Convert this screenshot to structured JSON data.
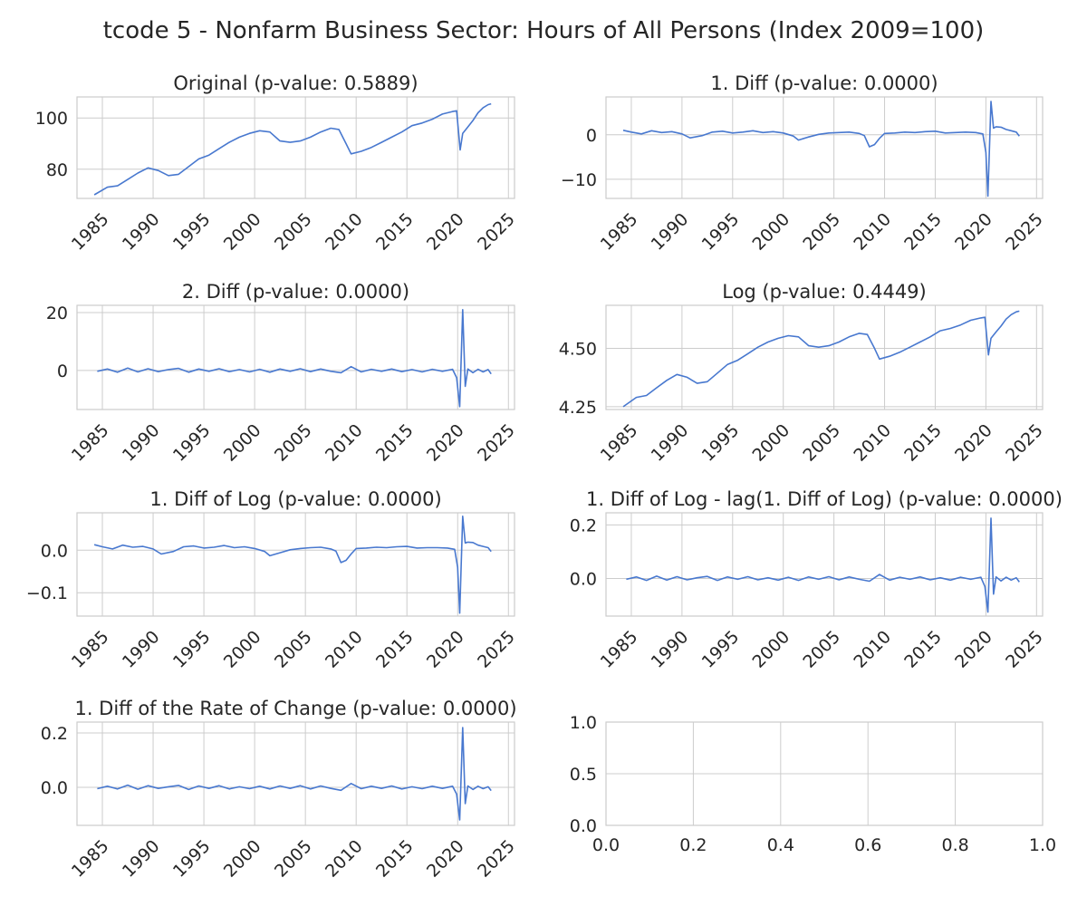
{
  "figure_title": "tcode 5 - Nonfarm Business Sector: Hours of All Persons (Index 2009=100)",
  "colors": {
    "line": "#4878cf",
    "grid": "#cccccc",
    "spine": "#cccccc",
    "text": "#262626",
    "background": "#ffffff"
  },
  "chart_data": [
    {
      "type": "line",
      "title": "Original (p-value: 0.5889)",
      "xlabel": "",
      "ylabel": "",
      "xlim": [
        1982.5,
        2025.6
      ],
      "ylim": [
        68.6,
        108.2
      ],
      "xticks": [
        1985,
        1990,
        1995,
        2000,
        2005,
        2010,
        2015,
        2020,
        2025
      ],
      "yticks": [
        80,
        100
      ],
      "ytick_labels": [
        "80",
        "100"
      ],
      "grid": true,
      "x": [
        1984.2,
        1985.5,
        1986.5,
        1987.5,
        1988.5,
        1989.5,
        1990.5,
        1991.5,
        1992.5,
        1993.5,
        1994.5,
        1995.5,
        1996.5,
        1997.5,
        1998.5,
        1999.5,
        2000.5,
        2001.5,
        2002.5,
        2003.5,
        2004.5,
        2005.5,
        2006.5,
        2007.5,
        2008.3,
        2009.0,
        2009.5,
        2010.5,
        2011.5,
        2012.5,
        2013.5,
        2014.5,
        2015.5,
        2016.5,
        2017.5,
        2018.5,
        2019.5,
        2019.9,
        2020.25,
        2020.5,
        2021.0,
        2021.5,
        2022.0,
        2022.5,
        2023.0,
        2023.3
      ],
      "y": [
        70,
        73,
        73.5,
        76,
        78.5,
        80.5,
        79.5,
        77.5,
        78,
        81,
        84,
        85.5,
        88,
        90.5,
        92.5,
        94,
        95,
        94.5,
        91,
        90.5,
        91,
        92.5,
        94.5,
        96,
        95.5,
        90,
        86,
        87,
        88.5,
        90.5,
        92.5,
        94.5,
        97,
        98,
        99.5,
        101.5,
        102.5,
        102.8,
        87.5,
        94,
        96.5,
        99,
        102,
        104,
        105.2,
        105.5
      ]
    },
    {
      "type": "line",
      "title": "1. Diff (p-value: 0.0000)",
      "xlabel": "",
      "ylabel": "",
      "xlim": [
        1982.5,
        2025.6
      ],
      "ylim": [
        -14.3,
        8.5
      ],
      "xticks": [
        1985,
        1990,
        1995,
        2000,
        2005,
        2010,
        2015,
        2020,
        2025
      ],
      "yticks": [
        -10,
        0
      ],
      "ytick_labels": [
        "−10",
        "0"
      ],
      "grid": true,
      "x": [
        1984.2,
        1985.0,
        1986.0,
        1987.0,
        1988.0,
        1989.0,
        1990.0,
        1990.8,
        1992.0,
        1993.0,
        1994.0,
        1995.0,
        1996.0,
        1997.0,
        1998.0,
        1999.0,
        2000.0,
        2001.0,
        2001.5,
        2002.5,
        2003.5,
        2004.5,
        2005.5,
        2006.5,
        2007.5,
        2008.0,
        2008.5,
        2009.0,
        2009.5,
        2010.0,
        2011.0,
        2012.0,
        2013.0,
        2014.0,
        2015.0,
        2016.0,
        2017.0,
        2018.0,
        2019.0,
        2019.7,
        2020.0,
        2020.2,
        2020.5,
        2020.75,
        2021.0,
        2021.5,
        2022.0,
        2022.5,
        2023.0,
        2023.3
      ],
      "y": [
        1,
        0.6,
        0.2,
        0.9,
        0.5,
        0.7,
        0.2,
        -0.7,
        -0.2,
        0.6,
        0.8,
        0.4,
        0.6,
        0.9,
        0.5,
        0.7,
        0.4,
        -0.3,
        -1.2,
        -0.5,
        0.1,
        0.4,
        0.5,
        0.6,
        0.3,
        -0.2,
        -2.7,
        -2.2,
        -0.8,
        0.3,
        0.4,
        0.6,
        0.5,
        0.7,
        0.8,
        0.4,
        0.5,
        0.6,
        0.5,
        0.2,
        -4,
        -13.8,
        7.5,
        1.5,
        1.8,
        1.7,
        1.2,
        0.9,
        0.6,
        -0.3
      ]
    },
    {
      "type": "line",
      "title": "2. Diff (p-value: 0.0000)",
      "xlabel": "",
      "ylabel": "",
      "xlim": [
        1982.5,
        2025.6
      ],
      "ylim": [
        -13.5,
        22.5
      ],
      "xticks": [
        1985,
        1990,
        1995,
        2000,
        2005,
        2010,
        2015,
        2020,
        2025
      ],
      "yticks": [
        0,
        20
      ],
      "ytick_labels": [
        "0",
        "20"
      ],
      "grid": true,
      "x": [
        1984.5,
        1985.5,
        1986.5,
        1987.5,
        1988.5,
        1989.5,
        1990.5,
        1991.5,
        1992.5,
        1993.5,
        1994.5,
        1995.5,
        1996.5,
        1997.5,
        1998.5,
        1999.5,
        2000.5,
        2001.5,
        2002.5,
        2003.5,
        2004.5,
        2005.5,
        2006.5,
        2007.5,
        2008.5,
        2009.5,
        2010.5,
        2011.5,
        2012.5,
        2013.5,
        2014.5,
        2015.5,
        2016.5,
        2017.5,
        2018.5,
        2019.5,
        2019.9,
        2020.2,
        2020.5,
        2020.75,
        2021.0,
        2021.5,
        2022.0,
        2022.5,
        2023.0,
        2023.3
      ],
      "y": [
        -0.3,
        0.5,
        -0.6,
        0.8,
        -0.5,
        0.6,
        -0.4,
        0.3,
        0.7,
        -0.6,
        0.5,
        -0.3,
        0.6,
        -0.4,
        0.3,
        -0.5,
        0.4,
        -0.6,
        0.5,
        -0.3,
        0.6,
        -0.4,
        0.5,
        -0.3,
        -0.8,
        1.3,
        -0.5,
        0.4,
        -0.3,
        0.5,
        -0.4,
        0.3,
        -0.5,
        0.4,
        -0.3,
        0.4,
        -2.5,
        -12.5,
        21,
        -5.5,
        0.5,
        -0.8,
        0.4,
        -0.5,
        0.3,
        -1.2
      ]
    },
    {
      "type": "line",
      "title": "Log (p-value: 0.4449)",
      "xlabel": "",
      "ylabel": "",
      "xlim": [
        1982.5,
        2025.6
      ],
      "ylim": [
        4.238,
        4.684
      ],
      "xticks": [
        1985,
        1990,
        1995,
        2000,
        2005,
        2010,
        2015,
        2020,
        2025
      ],
      "yticks": [
        4.25,
        4.5
      ],
      "ytick_labels": [
        "4.25",
        "4.50"
      ],
      "grid": true,
      "x": [
        1984.2,
        1985.5,
        1986.5,
        1987.5,
        1988.5,
        1989.5,
        1990.5,
        1991.5,
        1992.5,
        1993.5,
        1994.5,
        1995.5,
        1996.5,
        1997.5,
        1998.5,
        1999.5,
        2000.5,
        2001.5,
        2002.5,
        2003.5,
        2004.5,
        2005.5,
        2006.5,
        2007.5,
        2008.3,
        2009.0,
        2009.5,
        2010.5,
        2011.5,
        2012.5,
        2013.5,
        2014.5,
        2015.5,
        2016.5,
        2017.5,
        2018.5,
        2019.5,
        2019.9,
        2020.25,
        2020.5,
        2021.0,
        2021.5,
        2022.0,
        2022.5,
        2023.0,
        2023.3
      ],
      "y": [
        4.25,
        4.29,
        4.298,
        4.331,
        4.363,
        4.388,
        4.376,
        4.35,
        4.357,
        4.394,
        4.431,
        4.449,
        4.477,
        4.505,
        4.527,
        4.543,
        4.554,
        4.549,
        4.511,
        4.505,
        4.511,
        4.527,
        4.549,
        4.564,
        4.559,
        4.5,
        4.454,
        4.466,
        4.483,
        4.505,
        4.527,
        4.549,
        4.575,
        4.585,
        4.6,
        4.62,
        4.63,
        4.633,
        4.472,
        4.543,
        4.57,
        4.595,
        4.625,
        4.644,
        4.656,
        4.659
      ]
    },
    {
      "type": "line",
      "title": "1. Diff of Log (p-value: 0.0000)",
      "xlabel": "",
      "ylabel": "",
      "xlim": [
        1982.5,
        2025.6
      ],
      "ylim": [
        -0.155,
        0.088
      ],
      "xticks": [
        1985,
        1990,
        1995,
        2000,
        2005,
        2010,
        2015,
        2020,
        2025
      ],
      "yticks": [
        -0.1,
        0
      ],
      "ytick_labels": [
        "−0.1",
        "0.0"
      ],
      "grid": true,
      "x": [
        1984.2,
        1985.0,
        1986.0,
        1987.0,
        1988.0,
        1989.0,
        1990.0,
        1990.8,
        1992.0,
        1993.0,
        1994.0,
        1995.0,
        1996.0,
        1997.0,
        1998.0,
        1999.0,
        2000.0,
        2001.0,
        2001.5,
        2002.5,
        2003.5,
        2004.5,
        2005.5,
        2006.5,
        2007.5,
        2008.0,
        2008.5,
        2009.0,
        2009.5,
        2010.0,
        2011.0,
        2012.0,
        2013.0,
        2014.0,
        2015.0,
        2016.0,
        2017.0,
        2018.0,
        2019.0,
        2019.7,
        2020.0,
        2020.2,
        2020.5,
        2020.75,
        2021.0,
        2021.5,
        2022.0,
        2022.5,
        2023.0,
        2023.3
      ],
      "y": [
        0.013,
        0.008,
        0.003,
        0.012,
        0.007,
        0.009,
        0.003,
        -0.009,
        -0.003,
        0.008,
        0.01,
        0.005,
        0.007,
        0.011,
        0.006,
        0.008,
        0.004,
        -0.003,
        -0.013,
        -0.006,
        0.001,
        0.004,
        0.006,
        0.007,
        0.003,
        -0.002,
        -0.029,
        -0.024,
        -0.009,
        0.004,
        0.005,
        0.007,
        0.006,
        0.008,
        0.009,
        0.005,
        0.006,
        0.006,
        0.005,
        0.002,
        -0.04,
        -0.148,
        0.08,
        0.017,
        0.019,
        0.018,
        0.012,
        0.009,
        0.006,
        -0.003
      ]
    },
    {
      "type": "line",
      "title": "1. Diff of Log - lag(1. Diff of Log) (p-value: 0.0000)",
      "xlabel": "",
      "ylabel": "",
      "xlim": [
        1982.5,
        2025.6
      ],
      "ylim": [
        -0.14,
        0.245
      ],
      "xticks": [
        1985,
        1990,
        1995,
        2000,
        2005,
        2010,
        2015,
        2020,
        2025
      ],
      "yticks": [
        0,
        0.2
      ],
      "ytick_labels": [
        "0.0",
        "0.2"
      ],
      "grid": true,
      "x": [
        1984.5,
        1985.5,
        1986.5,
        1987.5,
        1988.5,
        1989.5,
        1990.5,
        1991.5,
        1992.5,
        1993.5,
        1994.5,
        1995.5,
        1996.5,
        1997.5,
        1998.5,
        1999.5,
        2000.5,
        2001.5,
        2002.5,
        2003.5,
        2004.5,
        2005.5,
        2006.5,
        2007.5,
        2008.5,
        2009.5,
        2010.5,
        2011.5,
        2012.5,
        2013.5,
        2014.5,
        2015.5,
        2016.5,
        2017.5,
        2018.5,
        2019.5,
        2019.9,
        2020.2,
        2020.5,
        2020.75,
        2021.0,
        2021.5,
        2022.0,
        2022.5,
        2023.0,
        2023.3
      ],
      "y": [
        -0.003,
        0.006,
        -0.007,
        0.009,
        -0.006,
        0.007,
        -0.005,
        0.003,
        0.008,
        -0.007,
        0.006,
        -0.003,
        0.007,
        -0.005,
        0.003,
        -0.006,
        0.005,
        -0.007,
        0.006,
        -0.003,
        0.007,
        -0.005,
        0.006,
        -0.003,
        -0.01,
        0.015,
        -0.006,
        0.005,
        -0.003,
        0.006,
        -0.005,
        0.003,
        -0.006,
        0.005,
        -0.003,
        0.005,
        -0.03,
        -0.125,
        0.225,
        -0.058,
        0.006,
        -0.009,
        0.005,
        -0.006,
        0.003,
        -0.013
      ]
    },
    {
      "type": "line",
      "title": "1. Diff of the Rate of Change (p-value: 0.0000)",
      "xlabel": "",
      "ylabel": "",
      "xlim": [
        1982.5,
        2025.6
      ],
      "ylim": [
        -0.14,
        0.24
      ],
      "xticks": [
        1985,
        1990,
        1995,
        2000,
        2005,
        2010,
        2015,
        2020,
        2025
      ],
      "yticks": [
        0,
        0.2
      ],
      "ytick_labels": [
        "0.0",
        "0.2"
      ],
      "grid": true,
      "x": [
        1984.5,
        1985.5,
        1986.5,
        1987.5,
        1988.5,
        1989.5,
        1990.5,
        1991.5,
        1992.5,
        1993.5,
        1994.5,
        1995.5,
        1996.5,
        1997.5,
        1998.5,
        1999.5,
        2000.5,
        2001.5,
        2002.5,
        2003.5,
        2004.5,
        2005.5,
        2006.5,
        2007.5,
        2008.5,
        2009.5,
        2010.5,
        2011.5,
        2012.5,
        2013.5,
        2014.5,
        2015.5,
        2016.5,
        2017.5,
        2018.5,
        2019.5,
        2019.9,
        2020.2,
        2020.5,
        2020.75,
        2021.0,
        2021.5,
        2022.0,
        2022.5,
        2023.0,
        2023.3
      ],
      "y": [
        -0.005,
        0.004,
        -0.006,
        0.008,
        -0.007,
        0.006,
        -0.004,
        0.002,
        0.007,
        -0.008,
        0.005,
        -0.004,
        0.006,
        -0.006,
        0.002,
        -0.005,
        0.004,
        -0.006,
        0.005,
        -0.004,
        0.006,
        -0.006,
        0.005,
        -0.004,
        -0.011,
        0.014,
        -0.005,
        0.004,
        -0.004,
        0.005,
        -0.006,
        0.002,
        -0.005,
        0.004,
        -0.004,
        0.004,
        -0.025,
        -0.12,
        0.22,
        -0.06,
        0.005,
        -0.008,
        0.004,
        -0.005,
        0.002,
        -0.012
      ]
    },
    {
      "type": "line",
      "title": "",
      "xlabel": "",
      "ylabel": "",
      "xlim": [
        0,
        1
      ],
      "ylim": [
        0,
        1
      ],
      "xticks": [
        0,
        0.2,
        0.4,
        0.6,
        0.8,
        1.0
      ],
      "xtick_labels": [
        "0.0",
        "0.2",
        "0.4",
        "0.6",
        "0.8",
        "1.0"
      ],
      "xtick_rotate": false,
      "yticks": [
        0,
        0.5,
        1.0
      ],
      "ytick_labels": [
        "0.0",
        "0.5",
        "1.0"
      ],
      "grid": true,
      "x": [],
      "y": []
    }
  ]
}
